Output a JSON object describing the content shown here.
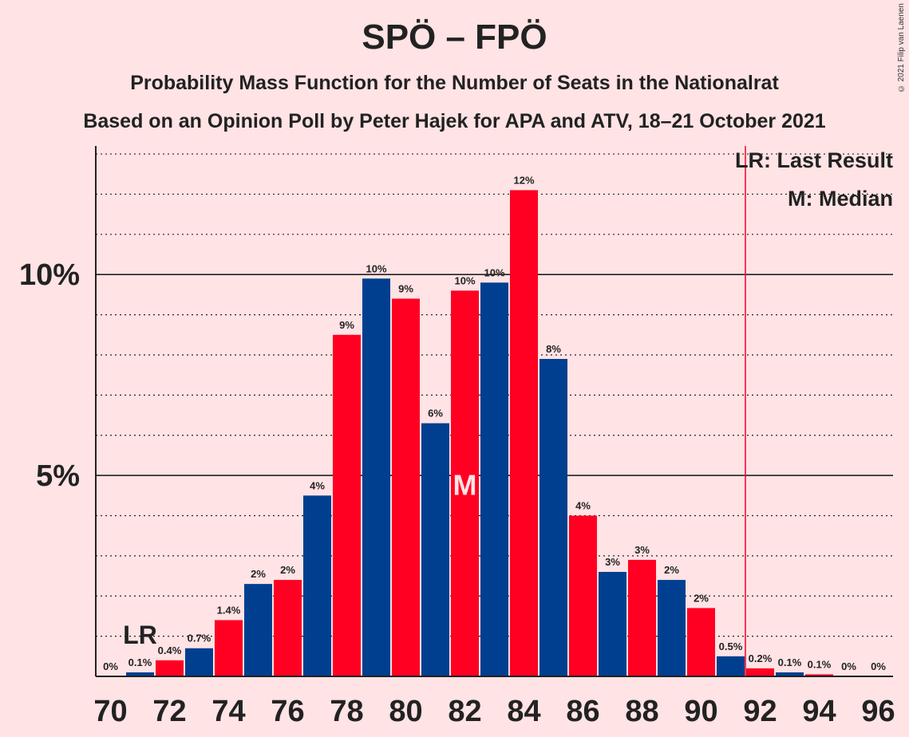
{
  "header": {
    "title": "SPÖ – FPÖ",
    "subtitle1": "Probability Mass Function for the Number of Seats in the Nationalrat",
    "subtitle2": "Based on an Opinion Poll by Peter Hajek for APA and ATV, 18–21 October 2021",
    "copyright": "© 2021 Filip van Laenen"
  },
  "colors": {
    "background": "#FFE3E5",
    "red": "#FF0022",
    "blue": "#003F8F",
    "last_result_line": "#FF0022",
    "text": "#222222"
  },
  "chart_data": {
    "type": "bar",
    "x": [
      70,
      71,
      72,
      73,
      74,
      75,
      76,
      77,
      78,
      79,
      80,
      81,
      82,
      83,
      84,
      85,
      86,
      87,
      88,
      89,
      90,
      91,
      92,
      93,
      94,
      95,
      96
    ],
    "values": [
      0,
      0.1,
      0.4,
      0.7,
      1.4,
      2.3,
      2.4,
      4.5,
      8.5,
      9.9,
      9.4,
      6.3,
      9.6,
      9.8,
      12.1,
      7.9,
      4.0,
      2.6,
      2.9,
      2.4,
      1.7,
      0.5,
      0.2,
      0.1,
      0.05,
      0,
      0
    ],
    "value_labels": [
      "0%",
      "0.1%",
      "0.4%",
      "0.7%",
      "1.4%",
      "2%",
      "2%",
      "4%",
      "9%",
      "10%",
      "9%",
      "6%",
      "10%",
      "10%",
      "12%",
      "8%",
      "4%",
      "3%",
      "3%",
      "2%",
      "2%",
      "0.5%",
      "0.2%",
      "0.1%",
      "0.1%",
      "0%",
      "0%"
    ],
    "bar_colors": [
      "red",
      "blue"
    ],
    "x_tick_labels": [
      "70",
      "72",
      "74",
      "76",
      "78",
      "80",
      "82",
      "84",
      "86",
      "88",
      "90",
      "92",
      "94",
      "96"
    ],
    "y_tick_labels": [
      "5%",
      "10%"
    ],
    "y_ticks": [
      5,
      10
    ],
    "ylim": [
      0,
      13.2
    ],
    "xlim": [
      69.5,
      96.5
    ],
    "minor_grid_step": 1,
    "last_result": {
      "seat": 71,
      "label": "LR"
    },
    "median": {
      "seat": 82,
      "label": "M"
    },
    "last_result_line_x": 91.5,
    "legend": {
      "placement": "top-right",
      "entries": [
        "LR: Last Result",
        "M: Median"
      ]
    }
  }
}
